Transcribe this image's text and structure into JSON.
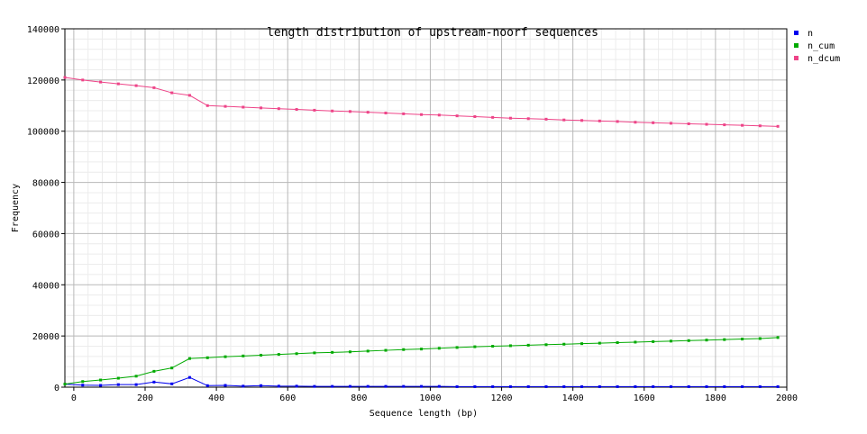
{
  "chart_data": {
    "type": "line",
    "title": "length distribution of upstream-noorf sequences",
    "xlabel": "Sequence length (bp)",
    "ylabel": "Frequency",
    "xlim": [
      -25,
      2000
    ],
    "ylim": [
      0,
      140000
    ],
    "x_ticks": [
      0,
      200,
      400,
      600,
      800,
      1000,
      1200,
      1400,
      1600,
      1800,
      2000
    ],
    "y_ticks": [
      0,
      20000,
      40000,
      60000,
      80000,
      100000,
      120000,
      140000
    ],
    "x_tick_labels": [
      "0",
      "200",
      "400",
      "600",
      "800",
      "1000",
      "1200",
      "1400",
      "1600",
      "1800",
      "2000"
    ],
    "y_tick_labels": [
      "0",
      "20000",
      "40000",
      "60000",
      "80000",
      "100000",
      "120000",
      "140000"
    ],
    "grid": true,
    "legend_position": "top-right",
    "x": [
      -25,
      25,
      75,
      125,
      175,
      225,
      275,
      325,
      375,
      425,
      475,
      525,
      575,
      625,
      675,
      725,
      775,
      825,
      875,
      925,
      975,
      1025,
      1075,
      1125,
      1175,
      1225,
      1275,
      1325,
      1375,
      1425,
      1475,
      1525,
      1575,
      1625,
      1675,
      1725,
      1775,
      1825,
      1875,
      1925,
      1975
    ],
    "series": [
      {
        "name": "n",
        "color": "#0000ee",
        "values": [
          1200,
          800,
          700,
          1000,
          1000,
          2000,
          1300,
          3800,
          600,
          700,
          400,
          600,
          400,
          400,
          300,
          300,
          300,
          300,
          300,
          300,
          300,
          300,
          200,
          200,
          200,
          200,
          200,
          200,
          200,
          200,
          200,
          200,
          200,
          200,
          200,
          200,
          200,
          200,
          200,
          200,
          200
        ]
      },
      {
        "name": "n_cum",
        "color": "#00aa00",
        "values": [
          1200,
          2200,
          2800,
          3500,
          4300,
          6200,
          7500,
          11200,
          11500,
          11900,
          12200,
          12500,
          12800,
          13100,
          13400,
          13600,
          13800,
          14100,
          14400,
          14700,
          14900,
          15200,
          15500,
          15800,
          16000,
          16200,
          16400,
          16600,
          16800,
          17000,
          17200,
          17400,
          17600,
          17800,
          18000,
          18200,
          18400,
          18600,
          18800,
          19000,
          19400
        ]
      },
      {
        "name": "n_dcum",
        "color": "#ee4488",
        "values": [
          121000,
          120000,
          119200,
          118500,
          117800,
          117000,
          115000,
          114000,
          110000,
          109700,
          109400,
          109100,
          108800,
          108500,
          108200,
          107900,
          107700,
          107400,
          107100,
          106800,
          106500,
          106300,
          106000,
          105700,
          105400,
          105100,
          104900,
          104700,
          104400,
          104200,
          104000,
          103800,
          103500,
          103300,
          103100,
          102900,
          102700,
          102500,
          102300,
          102100,
          101900
        ]
      }
    ]
  }
}
